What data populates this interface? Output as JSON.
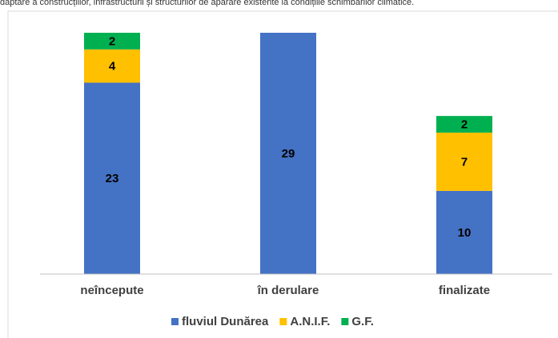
{
  "chart_data": {
    "type": "stacked-bar",
    "title": "daptare a construcțiilor, infrastructurii și structurilor de apărare existente la condițiile schimbărilor climatice.",
    "categories": [
      "neîncepute",
      "în derulare",
      "finalizate"
    ],
    "series": [
      {
        "name": "fluviul Dunărea",
        "color": "#4472c4",
        "values": [
          23,
          29,
          10
        ]
      },
      {
        "name": "A.N.I.F.",
        "color": "#ffc000",
        "values": [
          4,
          null,
          7
        ]
      },
      {
        "name": "G.F.",
        "color": "#00b050",
        "values": [
          2,
          null,
          2
        ]
      }
    ],
    "legend": "bottom"
  }
}
